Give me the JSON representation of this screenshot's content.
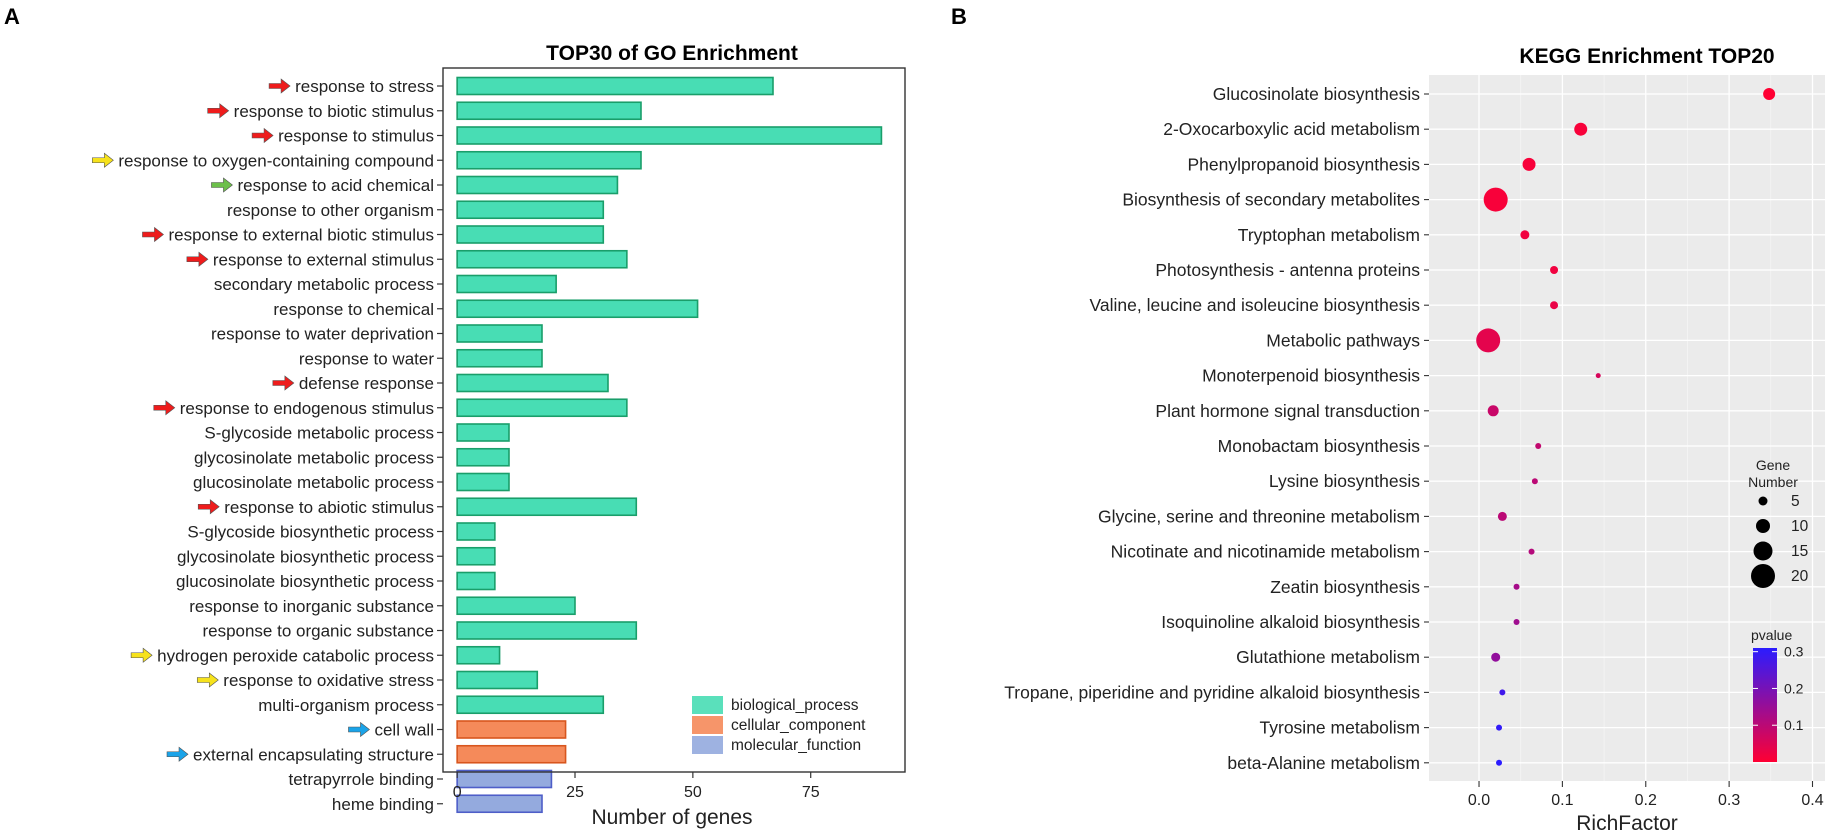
{
  "panels": {
    "a_label": "A",
    "b_label": "B"
  },
  "colors": {
    "biological_process": "#48DDB4",
    "biological_process_border": "#1A9E6A",
    "cellular_component": "#F58A5A",
    "cellular_component_border": "#D8561E",
    "molecular_function": "#94AADE",
    "molecular_function_border": "#4E5EC8",
    "arrow_red": "#EE1C1C",
    "arrow_yellow": "#F6E21C",
    "arrow_green": "#6CC04A",
    "arrow_blue": "#1AA3E8",
    "pvalue_low": "#FF0033",
    "pvalue_high": "#2B1CFF"
  },
  "chart_data": [
    {
      "type": "bar",
      "orientation": "horizontal",
      "title": "TOP30 of GO Enrichment",
      "xlabel": "Number of genes",
      "ylabel": "",
      "xlim": [
        -3,
        95
      ],
      "xticks": [
        "0",
        "25",
        "50",
        "75"
      ],
      "categories": [
        "response to stress",
        "response to biotic stimulus",
        "response to stimulus",
        "response to oxygen-containing compound",
        "response to acid chemical",
        "response to other organism",
        "response to external biotic stimulus",
        "response to external stimulus",
        "secondary metabolic process",
        "response to chemical",
        "response to water deprivation",
        "response to water",
        "defense response",
        "response to endogenous stimulus",
        "S-glycoside metabolic process",
        "glycosinolate metabolic process",
        "glucosinolate metabolic process",
        "response to abiotic stimulus",
        "S-glycoside biosynthetic process",
        "glycosinolate biosynthetic process",
        "glucosinolate biosynthetic process",
        "response to inorganic substance",
        "response to organic substance",
        "hydrogen peroxide catabolic process",
        "response to oxidative stress",
        "multi-organism process",
        "cell wall",
        "external encapsulating structure",
        "tetrapyrrole binding",
        "heme binding"
      ],
      "values": [
        67,
        39,
        90,
        39,
        34,
        31,
        31,
        36,
        21,
        51,
        18,
        18,
        32,
        36,
        11,
        11,
        11,
        38,
        8,
        8,
        8,
        25,
        38,
        9,
        17,
        31,
        23,
        23,
        20,
        18
      ],
      "groups": [
        "biological_process",
        "biological_process",
        "biological_process",
        "biological_process",
        "biological_process",
        "biological_process",
        "biological_process",
        "biological_process",
        "biological_process",
        "biological_process",
        "biological_process",
        "biological_process",
        "biological_process",
        "biological_process",
        "biological_process",
        "biological_process",
        "biological_process",
        "biological_process",
        "biological_process",
        "biological_process",
        "biological_process",
        "biological_process",
        "biological_process",
        "biological_process",
        "biological_process",
        "biological_process",
        "cellular_component",
        "cellular_component",
        "molecular_function",
        "molecular_function"
      ],
      "arrows": [
        "red",
        "red",
        "red",
        "yellow",
        "green",
        "",
        "red",
        "red",
        "",
        "",
        "",
        "",
        "red",
        "red",
        "",
        "",
        "",
        "red",
        "",
        "",
        "",
        "",
        "",
        "yellow",
        "yellow",
        "",
        "blue",
        "blue",
        "",
        ""
      ],
      "legend": [
        "biological_process",
        "cellular_component",
        "molecular_function"
      ],
      "legend_position": "bottom-right"
    },
    {
      "type": "scatter",
      "title": "KEGG Enrichment TOP20",
      "xlabel": "RichFactor",
      "ylabel": "",
      "xlim": [
        -0.06,
        0.415
      ],
      "xticks": [
        0.0,
        0.1,
        0.2,
        0.3,
        0.4
      ],
      "xtick_labels": [
        "0.0",
        "0.1",
        "0.2",
        "0.3",
        "0.4"
      ],
      "categories": [
        "Glucosinolate biosynthesis",
        "2-Oxocarboxylic acid metabolism",
        "Phenylpropanoid biosynthesis",
        "Biosynthesis of secondary metabolites",
        "Tryptophan metabolism",
        "Photosynthesis - antenna proteins",
        "Valine, leucine and isoleucine biosynthesis",
        "Metabolic pathways",
        "Monoterpenoid biosynthesis",
        "Plant hormone signal transduction",
        "Monobactam biosynthesis",
        "Lysine biosynthesis",
        "Glycine, serine and threonine metabolism",
        "Nicotinate and nicotinamide metabolism",
        "Zeatin biosynthesis",
        "Isoquinoline alkaloid biosynthesis",
        "Glutathione metabolism",
        "Tropane, piperidine and pyridine alkaloid biosynthesis",
        "Tyrosine metabolism",
        "beta-Alanine metabolism"
      ],
      "x": [
        0.348,
        0.122,
        0.06,
        0.02,
        0.055,
        0.09,
        0.09,
        0.011,
        0.143,
        0.017,
        0.071,
        0.067,
        0.028,
        0.063,
        0.045,
        0.045,
        0.02,
        0.028,
        0.024,
        0.024
      ],
      "gene_number": [
        8,
        9,
        9,
        20,
        5,
        4,
        4,
        20,
        1,
        7,
        2,
        2,
        5,
        2,
        2,
        2,
        5,
        2,
        2,
        2
      ],
      "pvalue": [
        0.0,
        0.01,
        0.01,
        0.01,
        0.02,
        0.02,
        0.03,
        0.04,
        0.06,
        0.08,
        0.09,
        0.1,
        0.1,
        0.11,
        0.13,
        0.14,
        0.16,
        0.28,
        0.3,
        0.31
      ],
      "size_legend": {
        "title": "Gene\nNumber",
        "title_line1": "Gene",
        "title_line2": "Number",
        "values": [
          5,
          10,
          15,
          20
        ],
        "labels": [
          "5",
          "10",
          "15",
          "20"
        ]
      },
      "color_legend": {
        "title": "pvalue",
        "range": [
          0.0,
          0.31
        ],
        "ticks": [
          0.1,
          0.2,
          0.3
        ],
        "labels": [
          "0.1",
          "0.2",
          "0.3"
        ]
      },
      "legend_position": "right"
    }
  ]
}
